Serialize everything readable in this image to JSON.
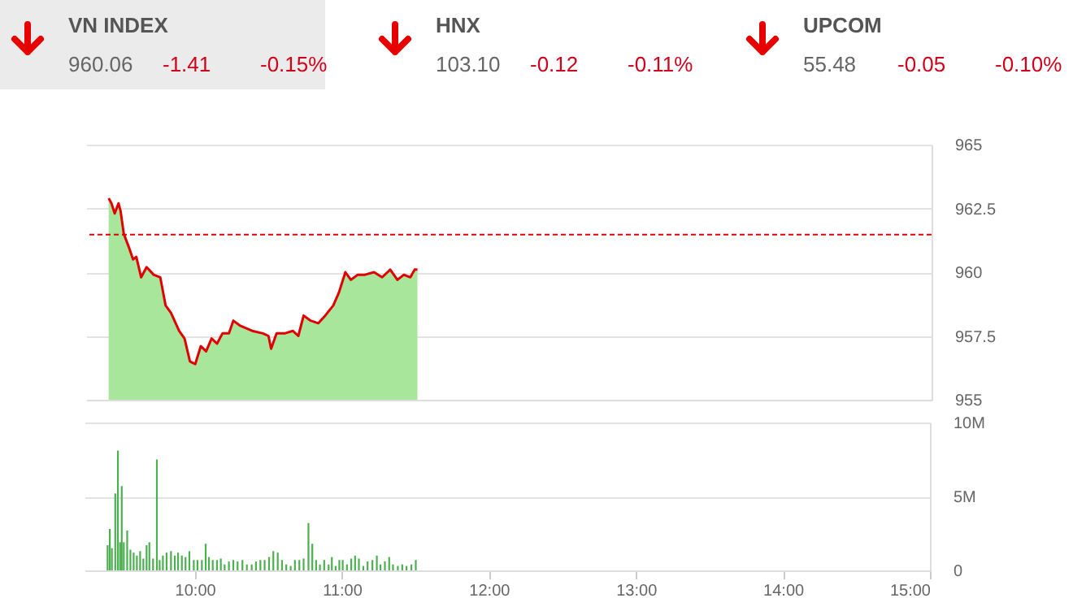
{
  "chart_data": [
    {
      "type": "other",
      "annotations": [
        "VN INDEX",
        "960.06",
        "-1.41",
        "-0.15%",
        "HNX",
        "103.10",
        "-0.12",
        "-0.11%",
        "UPCOM",
        "55.48",
        "-0.05",
        "-0.10%"
      ]
    },
    {
      "type": "area",
      "xlim": [
        9.25,
        15
      ],
      "ylim": [
        955,
        965
      ],
      "yticks": [
        955,
        957.5,
        960,
        962.5,
        965
      ],
      "grid": "y",
      "tick_labels": "y",
      "series": [
        {
          "type": "area",
          "color": "#a8e69c",
          "x": [
            9.403,
            9.422,
            9.444,
            9.47,
            9.484,
            9.506,
            9.539,
            9.569,
            9.591,
            9.624,
            9.661,
            9.709,
            9.754,
            9.79,
            9.827,
            9.882,
            9.919,
            9.956,
            9.992,
            10.03,
            10.066,
            10.103,
            10.14,
            10.177,
            10.221,
            10.251,
            10.298,
            10.379,
            10.453,
            10.49,
            10.508,
            10.545,
            10.6,
            10.655,
            10.693,
            10.729,
            10.777,
            10.829,
            10.876,
            10.931,
            10.969,
            11.013,
            11.05,
            11.097,
            11.146,
            11.208,
            11.263,
            11.318,
            11.367,
            11.411,
            11.455,
            11.484,
            11.503
          ],
          "values": [
            962.9,
            962.7,
            962.3,
            962.7,
            962.4,
            961.5,
            961.0,
            960.5,
            960.6,
            959.8,
            960.2,
            959.9,
            959.8,
            958.7,
            958.4,
            957.7,
            957.4,
            956.5,
            956.4,
            957.1,
            956.9,
            957.4,
            957.2,
            957.6,
            957.6,
            958.1,
            957.9,
            957.7,
            957.6,
            957.5,
            957.0,
            957.6,
            957.6,
            957.7,
            957.5,
            958.3,
            958.1,
            958.0,
            958.3,
            958.7,
            959.2,
            960.0,
            959.7,
            959.9,
            959.9,
            960.0,
            959.8,
            960.1,
            959.7,
            959.9,
            959.8,
            960.1,
            960.1
          ]
        },
        {
          "type": "line",
          "color": "#e00000",
          "x": [
            9.403,
            9.422,
            9.444,
            9.47,
            9.484,
            9.506,
            9.539,
            9.569,
            9.591,
            9.624,
            9.661,
            9.709,
            9.754,
            9.79,
            9.827,
            9.882,
            9.919,
            9.956,
            9.992,
            10.03,
            10.066,
            10.103,
            10.14,
            10.177,
            10.221,
            10.251,
            10.298,
            10.379,
            10.453,
            10.49,
            10.508,
            10.545,
            10.6,
            10.655,
            10.693,
            10.729,
            10.777,
            10.829,
            10.876,
            10.931,
            10.969,
            11.013,
            11.05,
            11.097,
            11.146,
            11.208,
            11.263,
            11.318,
            11.367,
            11.411,
            11.455,
            11.484,
            11.503
          ],
          "values": [
            962.9,
            962.7,
            962.3,
            962.7,
            962.4,
            961.5,
            961.0,
            960.5,
            960.6,
            959.8,
            960.2,
            959.9,
            959.8,
            958.7,
            958.4,
            957.7,
            957.4,
            956.5,
            956.4,
            957.1,
            956.9,
            957.4,
            957.2,
            957.6,
            957.6,
            958.1,
            957.9,
            957.7,
            957.6,
            957.5,
            957.0,
            957.6,
            957.6,
            957.7,
            957.5,
            958.3,
            958.1,
            958.0,
            958.3,
            958.7,
            959.2,
            960.0,
            959.7,
            959.9,
            959.9,
            960.0,
            959.8,
            960.1,
            959.7,
            959.9,
            959.8,
            960.1,
            960.1
          ]
        }
      ],
      "ref_lines": [
        {
          "axis": "y",
          "value": 961.47,
          "color": "#e00000",
          "line_style": "dashed"
        }
      ]
    },
    {
      "type": "bar",
      "xlim": [
        9.25,
        15
      ],
      "xticks": [
        {
          "value": 10,
          "label": "10:00"
        },
        {
          "value": 11,
          "label": "11:00"
        },
        {
          "value": 12,
          "label": "12:00"
        },
        {
          "value": 13,
          "label": "13:00"
        },
        {
          "value": 14,
          "label": "14:00"
        },
        {
          "value": 15,
          "label": "15:00"
        }
      ],
      "ylim": [
        0,
        10
      ],
      "yticks": [
        0,
        {
          "value": 5,
          "label": "5M"
        },
        {
          "value": 10,
          "label": "10M"
        }
      ],
      "grid": "y",
      "series": [
        {
          "color": "#4caf50",
          "x": [
            9.407,
            9.422,
            9.436,
            9.459,
            9.477,
            9.492,
            9.503,
            9.517,
            9.54,
            9.562,
            9.584,
            9.606,
            9.628,
            9.65,
            9.672,
            9.691,
            9.716,
            9.742,
            9.761,
            9.783,
            9.808,
            9.838,
            9.864,
            9.886,
            9.912,
            9.937,
            9.963,
            9.993,
            10.018,
            10.048,
            10.074,
            10.096,
            10.122,
            10.151,
            10.177,
            10.203,
            10.232,
            10.262,
            10.291,
            10.324,
            10.354,
            10.387,
            10.416,
            10.446,
            10.475,
            10.505,
            10.534,
            10.564,
            10.593,
            10.622,
            10.652,
            10.681,
            10.711,
            10.74,
            10.773,
            10.799,
            10.825,
            10.851,
            10.88,
            10.91,
            10.932,
            10.958,
            10.983,
            11.006,
            11.035,
            11.064,
            11.09,
            11.116,
            11.146,
            11.175,
            11.208,
            11.238,
            11.263,
            11.293,
            11.322,
            11.348,
            11.381,
            11.411,
            11.44,
            11.473,
            11.503
          ],
          "values": [
            1.7,
            2.8,
            1.5,
            5.2,
            8.1,
            1.9,
            5.7,
            1.9,
            2.7,
            1.4,
            1.2,
            1.0,
            1.3,
            0.8,
            1.7,
            1.9,
            0.8,
            7.5,
            0.7,
            1.0,
            1.2,
            1.3,
            1.0,
            1.2,
            1.0,
            0.9,
            1.3,
            0.7,
            0.7,
            0.7,
            1.8,
            0.9,
            0.7,
            0.7,
            0.8,
            0.4,
            0.6,
            0.7,
            0.6,
            0.7,
            0.4,
            0.4,
            0.6,
            0.7,
            0.7,
            0.9,
            1.3,
            1.2,
            0.7,
            0.4,
            0.3,
            0.7,
            0.7,
            0.8,
            3.2,
            1.8,
            0.7,
            0.4,
            0.7,
            0.4,
            0.9,
            0.3,
            0.7,
            0.7,
            0.4,
            0.8,
            1.0,
            0.8,
            0.3,
            0.6,
            0.7,
            1.0,
            0.4,
            0.6,
            0.9,
            0.4,
            0.3,
            0.4,
            0.3,
            0.4,
            0.7
          ]
        }
      ]
    }
  ]
}
